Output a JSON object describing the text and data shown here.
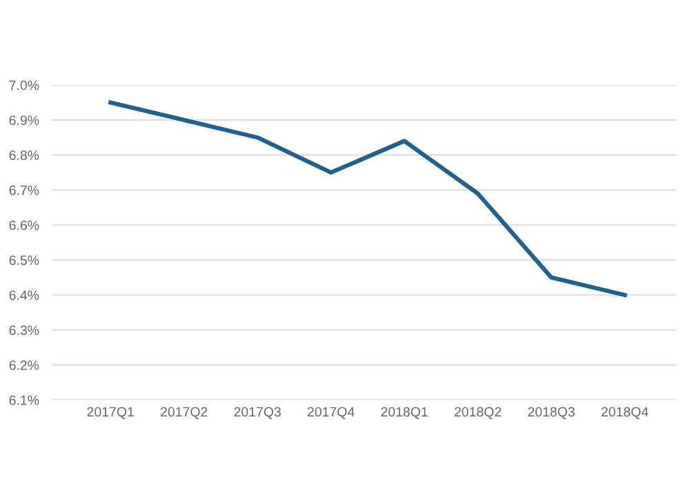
{
  "chart_data": {
    "type": "line",
    "categories": [
      "2017Q1",
      "2017Q2",
      "2017Q3",
      "2017Q4",
      "2018Q1",
      "2018Q2",
      "2018Q3",
      "2018Q4"
    ],
    "series": [
      {
        "color": "#1f6193",
        "values": [
          6.95,
          6.9,
          6.85,
          6.75,
          6.84,
          6.69,
          6.45,
          6.4
        ]
      }
    ],
    "ylim": [
      6.1,
      7.0
    ],
    "yticks": [
      {
        "value": 6.1,
        "label": "6.1%"
      },
      {
        "value": 6.2,
        "label": "6.2%"
      },
      {
        "value": 6.3,
        "label": "6.3%"
      },
      {
        "value": 6.4,
        "label": "6.4%"
      },
      {
        "value": 6.5,
        "label": "6.5%"
      },
      {
        "value": 6.6,
        "label": "6.6%"
      },
      {
        "value": 6.7,
        "label": "6.7%"
      },
      {
        "value": 6.8,
        "label": "6.8%"
      },
      {
        "value": 6.9,
        "label": "6.9%"
      },
      {
        "value": 7.0,
        "label": "7.0%"
      }
    ],
    "grid": "y",
    "marker": "none",
    "line_style": "solid"
  }
}
